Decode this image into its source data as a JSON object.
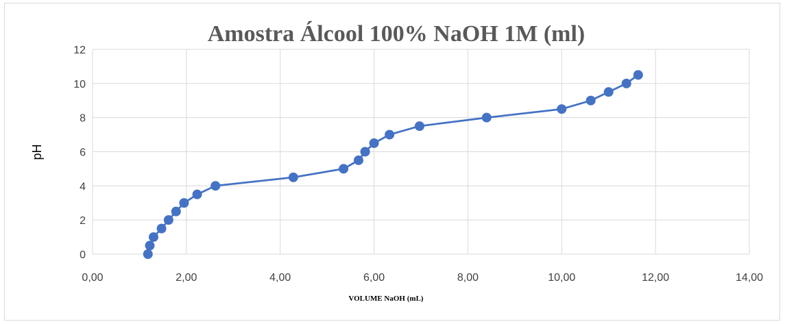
{
  "chart_data": {
    "type": "scatter",
    "title": "Amostra Álcool 100% NaOH 1M (ml)",
    "xlabel": "VOLUME NaOH (mL)",
    "ylabel": "pH",
    "xlim": [
      0,
      14
    ],
    "ylim": [
      0,
      12
    ],
    "x_ticks": [
      "0,00",
      "2,00",
      "4,00",
      "6,00",
      "8,00",
      "10,00",
      "12,00",
      "14,00"
    ],
    "y_ticks": [
      "0",
      "2",
      "4",
      "6",
      "8",
      "10",
      "12"
    ],
    "grid": true,
    "legend": "none",
    "line_color": "#4472c4",
    "marker_color": "#4472c4",
    "series": [
      {
        "x": [
          1.18,
          1.22,
          1.3,
          1.47,
          1.62,
          1.78,
          1.95,
          2.23,
          2.62,
          4.28,
          5.35,
          5.67,
          5.81,
          6.0,
          6.33,
          6.97,
          8.4,
          10.0,
          10.62,
          11.0,
          11.38,
          11.63
        ],
        "y": [
          0,
          0.5,
          1.0,
          1.5,
          2.0,
          2.5,
          3.0,
          3.5,
          4.0,
          4.5,
          5.0,
          5.5,
          6.0,
          6.5,
          7.0,
          7.5,
          8.0,
          8.5,
          9.0,
          9.5,
          10.0,
          10.5
        ]
      }
    ]
  }
}
